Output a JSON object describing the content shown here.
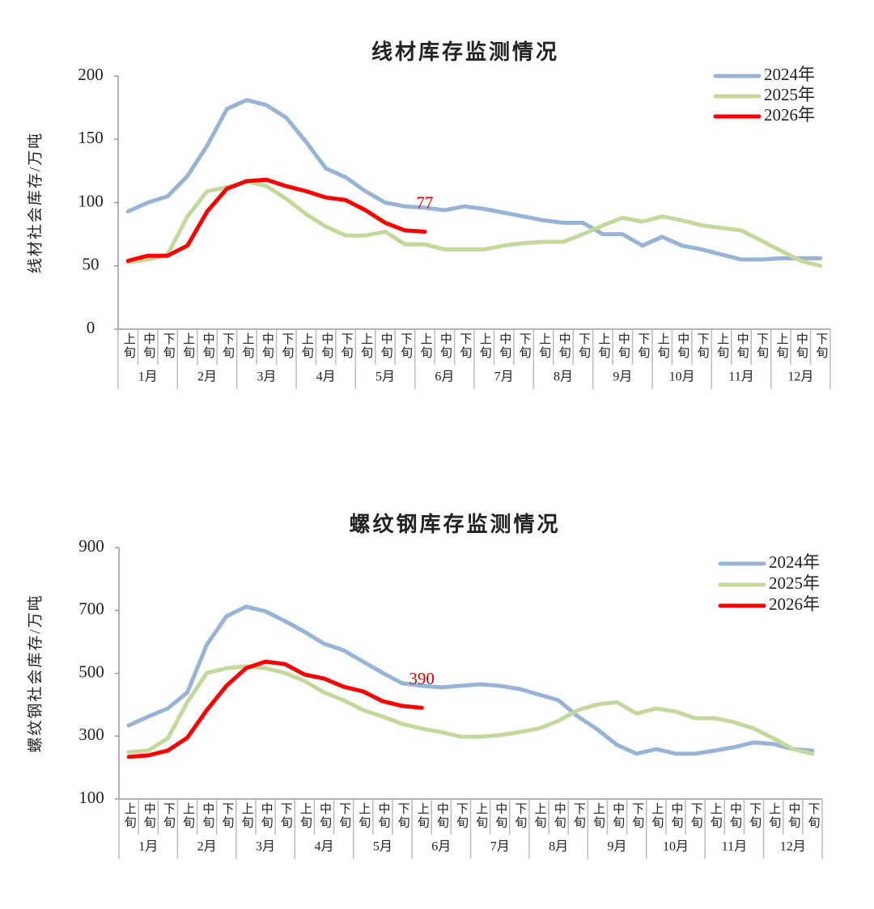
{
  "chart_data": [
    {
      "type": "line",
      "title": "线材库存监测情况",
      "y_label": "线材社会库存/万吨",
      "categories": [
        "上旬",
        "中旬",
        "下旬",
        "上旬",
        "中旬",
        "下旬",
        "上旬",
        "中旬",
        "下旬",
        "上旬",
        "中旬",
        "下旬",
        "上旬",
        "中旬",
        "下旬",
        "上旬",
        "中旬",
        "下旬",
        "上旬",
        "中旬",
        "下旬",
        "上旬",
        "中旬",
        "下旬",
        "上旬",
        "中旬",
        "下旬",
        "上旬",
        "中旬",
        "下旬",
        "上旬",
        "中旬",
        "下旬",
        "上旬",
        "中旬",
        "下旬"
      ],
      "groups": [
        "1月",
        "2月",
        "3月",
        "4月",
        "5月",
        "6月",
        "7月",
        "8月",
        "9月",
        "10月",
        "11月",
        "12月"
      ],
      "ylim": [
        0,
        200
      ],
      "yticks": [
        0,
        50,
        100,
        150,
        200
      ],
      "legend": "upper right",
      "series": [
        {
          "name": "2024年",
          "color": "#97b3d6",
          "values": [
            93,
            100,
            105,
            121,
            145,
            174,
            181,
            177,
            167,
            148,
            127,
            120,
            109,
            100,
            97,
            96,
            94,
            97,
            95,
            92,
            89,
            86,
            84,
            84,
            75,
            75,
            66,
            73,
            66,
            63,
            59,
            55,
            55,
            56,
            56,
            56
          ]
        },
        {
          "name": "2025年",
          "color": "#c4d89b",
          "values": [
            53,
            55,
            59,
            89,
            109,
            112,
            117,
            113,
            103,
            91,
            81,
            74,
            74,
            77,
            67,
            67,
            63,
            63,
            63,
            66,
            68,
            69,
            69,
            75,
            82,
            88,
            85,
            89,
            86,
            82,
            80,
            78,
            70,
            62,
            54,
            50
          ]
        },
        {
          "name": "2026年",
          "color": "#ff0000",
          "values": [
            54,
            58,
            58,
            66,
            93,
            111,
            117,
            118,
            113,
            109,
            104,
            102,
            94,
            84,
            78,
            77,
            null,
            null,
            null,
            null,
            null,
            null,
            null,
            null,
            null,
            null,
            null,
            null,
            null,
            null,
            null,
            null,
            null,
            null,
            null,
            null
          ]
        }
      ]
    },
    {
      "type": "line",
      "title": "螺纹钢库存监测情况",
      "y_label": "螺纹钢社会库存/万吨",
      "categories": [
        "上旬",
        "中旬",
        "下旬",
        "上旬",
        "中旬",
        "下旬",
        "上旬",
        "中旬",
        "下旬",
        "上旬",
        "中旬",
        "下旬",
        "上旬",
        "中旬",
        "下旬",
        "上旬",
        "中旬",
        "下旬",
        "上旬",
        "中旬",
        "下旬",
        "上旬",
        "中旬",
        "下旬",
        "上旬",
        "中旬",
        "下旬",
        "上旬",
        "中旬",
        "下旬",
        "上旬",
        "中旬",
        "下旬",
        "上旬",
        "中旬",
        "下旬"
      ],
      "groups": [
        "1月",
        "2月",
        "3月",
        "4月",
        "5月",
        "6月",
        "7月",
        "8月",
        "9月",
        "10月",
        "11月",
        "12月"
      ],
      "ylim": [
        100,
        900
      ],
      "yticks": [
        100,
        300,
        500,
        700,
        900
      ],
      "legend": "upper right",
      "series": [
        {
          "name": "2024年",
          "color": "#97b3d6",
          "values": [
            334,
            362,
            388,
            439,
            591,
            681,
            712,
            697,
            666,
            632,
            594,
            573,
            537,
            501,
            468,
            460,
            455,
            460,
            465,
            460,
            450,
            432,
            414,
            362,
            321,
            272,
            244,
            259,
            244,
            244,
            254,
            265,
            280,
            275,
            259,
            254
          ]
        },
        {
          "name": "2025年",
          "color": "#c4d89b",
          "values": [
            249,
            254,
            293,
            408,
            501,
            516,
            522,
            516,
            501,
            475,
            439,
            414,
            383,
            362,
            339,
            324,
            313,
            298,
            298,
            303,
            313,
            324,
            349,
            383,
            401,
            408,
            372,
            388,
            378,
            357,
            357,
            344,
            324,
            293,
            259,
            244
          ]
        },
        {
          "name": "2026年",
          "color": "#ff0000",
          "values": [
            234,
            239,
            254,
            295,
            383,
            460,
            516,
            537,
            529,
            496,
            483,
            457,
            442,
            411,
            396,
            390,
            null,
            null,
            null,
            null,
            null,
            null,
            null,
            null,
            null,
            null,
            null,
            null,
            null,
            null,
            null,
            null,
            null,
            null,
            null,
            null
          ]
        }
      ]
    }
  ]
}
